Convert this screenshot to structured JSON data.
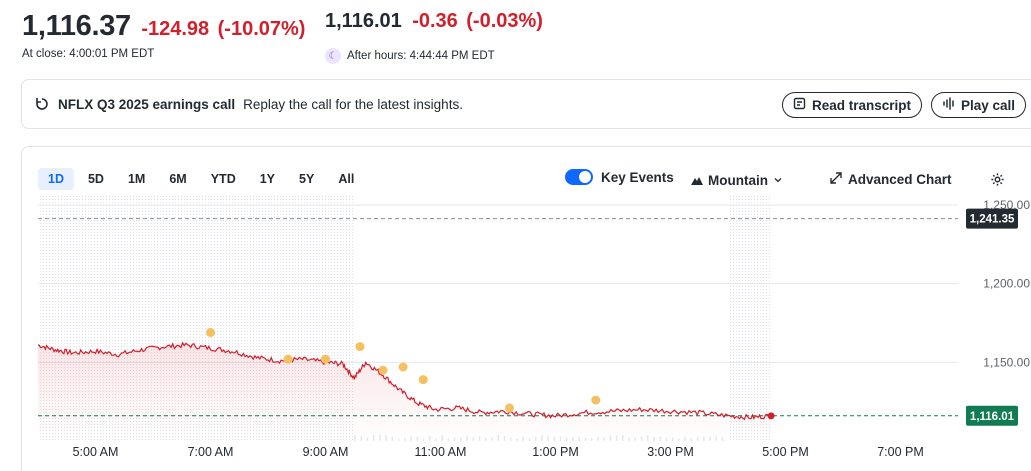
{
  "quote": {
    "close_price": "1,116.37",
    "close_change": "-124.98",
    "close_change_pct": "(-10.07%)",
    "close_time": "At close: 4:00:01 PM EDT",
    "after_price": "1,116.01",
    "after_change": "-0.36",
    "after_change_pct": "(-0.03%)",
    "after_time": "After hours: 4:44:44 PM EDT"
  },
  "banner": {
    "title": "NFLX Q3 2025 earnings call",
    "description": "Replay the call for the latest insights.",
    "transcript_label": "Read transcript",
    "play_label": "Play call"
  },
  "chart_controls": {
    "ranges": [
      "1D",
      "5D",
      "1M",
      "6M",
      "YTD",
      "1Y",
      "5Y",
      "All"
    ],
    "active_range": "1D",
    "key_events_label": "Key Events",
    "key_events_on": true,
    "chart_type_label": "Mountain",
    "advanced_label": "Advanced Chart"
  },
  "colors": {
    "up_red": "#d21f2c",
    "accent_blue": "#0f69ff",
    "event_dot": "#f6c060",
    "last_badge": "#117b53",
    "prev_close_badge": "#232a31"
  },
  "chart_data": {
    "type": "line",
    "x_ticks": [
      "5:00 AM",
      "7:00 AM",
      "9:00 AM",
      "11:00 AM",
      "1:00 PM",
      "3:00 PM",
      "5:00 PM",
      "7:00 PM"
    ],
    "y_ticks": [
      "1,250.00",
      "1,200.00",
      "1,150.00"
    ],
    "ylim": [
      1100,
      1250
    ],
    "previous_close": 1241.35,
    "previous_close_label": "1,241.35",
    "last_value": 1116.01,
    "last_value_label": "1,116.01",
    "x_range_hours": [
      4,
      20
    ],
    "series": [
      {
        "x": [
          4.0,
          4.3,
          4.6,
          5.0,
          5.4,
          5.8,
          6.2,
          6.6,
          7.0,
          7.4,
          7.8,
          8.2,
          8.6,
          9.0,
          9.3,
          9.5,
          9.7,
          10.0,
          10.3,
          10.6,
          10.9,
          11.3,
          11.7,
          12.1,
          12.6,
          13.0,
          13.5,
          14.0,
          14.5,
          15.0,
          15.5,
          16.0,
          16.4,
          16.75
        ],
        "y": [
          1161,
          1158,
          1156,
          1157,
          1155,
          1158,
          1160,
          1161,
          1159,
          1157,
          1153,
          1151,
          1152,
          1150,
          1149,
          1140,
          1150,
          1142,
          1132,
          1124,
          1120,
          1121,
          1118,
          1119,
          1117,
          1116,
          1118,
          1119,
          1120,
          1119,
          1118,
          1116,
          1115,
          1116
        ]
      }
    ],
    "key_events": [
      {
        "x": 7.0,
        "y": 1169
      },
      {
        "x": 8.35,
        "y": 1152
      },
      {
        "x": 9.0,
        "y": 1152
      },
      {
        "x": 9.6,
        "y": 1160
      },
      {
        "x": 10.0,
        "y": 1145
      },
      {
        "x": 10.35,
        "y": 1147
      },
      {
        "x": 10.7,
        "y": 1139
      },
      {
        "x": 12.2,
        "y": 1121
      },
      {
        "x": 13.7,
        "y": 1126
      }
    ]
  }
}
